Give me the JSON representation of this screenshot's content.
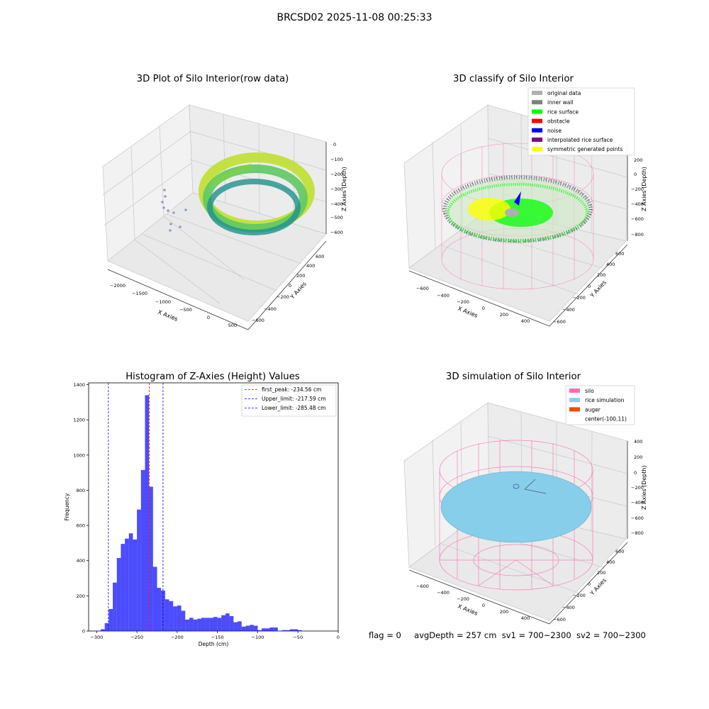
{
  "suptitle": "BRCSD02 2025-11-08 00:25:33",
  "footer": {
    "flag": "flag = 0",
    "avg_depth": "avgDepth = 257 cm",
    "sv1": "sv1 = 700~2300",
    "sv2": "sv2 = 700~2300"
  },
  "panel_raw": {
    "title": "3D Plot of Silo Interior(row data)",
    "xlabel": "X Axies",
    "ylabel": "Y Axies",
    "zlabel": "Z Axies (Depth)",
    "xticks": [
      "−2000",
      "−1500",
      "−1000",
      "−500",
      "0",
      "500"
    ],
    "yticks": [
      "−600",
      "−400",
      "−200",
      "0",
      "200",
      "400",
      "600"
    ],
    "zticks": [
      "0",
      "−100",
      "−200",
      "−300",
      "−400",
      "−500",
      "−600"
    ],
    "colors": {
      "low": "#21918c",
      "high": "#bddf26",
      "stray": "#8da0cb"
    }
  },
  "panel_classify": {
    "title": "3D classify of Silo Interior",
    "xlabel": "X Axies",
    "ylabel": "Y Axies",
    "zlabel": "Z Axies (Depth)",
    "xticks": [
      "−600",
      "−400",
      "−200",
      "0",
      "200",
      "400"
    ],
    "yticks": [
      "−600",
      "−400",
      "−200",
      "0",
      "200",
      "400",
      "600"
    ],
    "zticks": [
      "200",
      "0",
      "−200",
      "−400",
      "−600",
      "−800"
    ],
    "legend": [
      {
        "label": "original data",
        "color": "#b0b0b0"
      },
      {
        "label": "inner wall",
        "color": "#808080"
      },
      {
        "label": "rice surface",
        "color": "#00ff00"
      },
      {
        "label": "obstacle",
        "color": "#ff0000"
      },
      {
        "label": "noise",
        "color": "#0000ff"
      },
      {
        "label": "interpolated rice surface",
        "color": "#800080"
      },
      {
        "label": "symmetric generated points",
        "color": "#ffff00"
      }
    ],
    "silo_color": "#ff69b4"
  },
  "panel_sim": {
    "title": "3D simulation of Silo Interior",
    "xlabel": "X Axies",
    "ylabel": "Y Axies",
    "zlabel": "Z Axies (Depth)",
    "xticks": [
      "−600",
      "−400",
      "−200",
      "0",
      "200",
      "400"
    ],
    "yticks": [
      "−600",
      "−400",
      "−200",
      "0",
      "200",
      "400",
      "600"
    ],
    "zticks": [
      "400",
      "200",
      "0",
      "−200",
      "−400",
      "−600",
      "−800"
    ],
    "legend": [
      {
        "label": "silo",
        "color": "#ff69b4"
      },
      {
        "label": "rice simulation",
        "color": "#87ceeb"
      },
      {
        "label": "auger",
        "color": "#ff4500"
      },
      {
        "label": "center(-100,11)",
        "color": ""
      }
    ]
  },
  "chart_data": {
    "type": "bar",
    "title": "Histogram of Z-Axies (Height) Values",
    "xlabel": "Depth (cm)",
    "ylabel": "Frequency",
    "xlim": [
      -310,
      0
    ],
    "ylim": [
      0,
      1410
    ],
    "xticks": [
      -300,
      -250,
      -200,
      -150,
      -100,
      -50,
      0
    ],
    "yticks": [
      0,
      200,
      400,
      600,
      800,
      1000,
      1200,
      1400
    ],
    "bar_color": "#0000ff",
    "bin_start": -295,
    "bin_width": 5,
    "values": [
      10,
      45,
      125,
      275,
      415,
      495,
      525,
      555,
      520,
      690,
      915,
      1340,
      820,
      365,
      245,
      230,
      180,
      170,
      140,
      145,
      115,
      65,
      75,
      65,
      70,
      75,
      75,
      75,
      80,
      75,
      90,
      100,
      85,
      50,
      55,
      25,
      30,
      35,
      30,
      5,
      15,
      15,
      20,
      20,
      0,
      5,
      5,
      10,
      10,
      5
    ],
    "vlines": [
      {
        "x": -234.56,
        "label": "first_peak: -234.56 cm",
        "color": "#ff0000"
      },
      {
        "x": -217.59,
        "label": "Upper_limit: -217.59 cm",
        "color": "#0000ff"
      },
      {
        "x": -285.48,
        "label": "Lower_limit: -285.48 cm",
        "color": "#0000ff"
      }
    ]
  }
}
